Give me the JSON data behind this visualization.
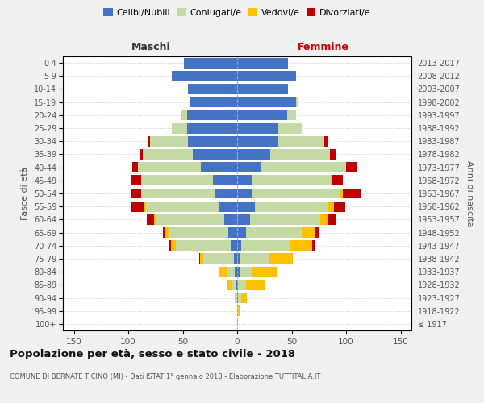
{
  "age_groups": [
    "100+",
    "95-99",
    "90-94",
    "85-89",
    "80-84",
    "75-79",
    "70-74",
    "65-69",
    "60-64",
    "55-59",
    "50-54",
    "45-49",
    "40-44",
    "35-39",
    "30-34",
    "25-29",
    "20-24",
    "15-19",
    "10-14",
    "5-9",
    "0-4"
  ],
  "birth_years": [
    "≤ 1917",
    "1918-1922",
    "1923-1927",
    "1928-1932",
    "1933-1937",
    "1938-1942",
    "1943-1947",
    "1948-1952",
    "1953-1957",
    "1958-1962",
    "1963-1967",
    "1968-1972",
    "1973-1977",
    "1978-1982",
    "1983-1987",
    "1988-1992",
    "1993-1997",
    "1998-2002",
    "2003-2007",
    "2008-2012",
    "2013-2017"
  ],
  "colors": {
    "celibi": "#4472c4",
    "coniugati": "#c5d9a5",
    "vedovi": "#ffc000",
    "divorziati": "#c00000"
  },
  "maschi": {
    "celibi": [
      0,
      0,
      0,
      1,
      2,
      3,
      6,
      8,
      12,
      16,
      20,
      22,
      33,
      41,
      45,
      46,
      46,
      43,
      45,
      60,
      49
    ],
    "coniugati": [
      0,
      0,
      2,
      4,
      8,
      28,
      50,
      55,
      62,
      68,
      68,
      66,
      58,
      46,
      35,
      14,
      5,
      1,
      0,
      0,
      0
    ],
    "vedovi": [
      0,
      0,
      0,
      4,
      6,
      3,
      5,
      3,
      2,
      1,
      0,
      0,
      0,
      0,
      0,
      0,
      0,
      0,
      0,
      0,
      0
    ],
    "divorziati": [
      0,
      0,
      0,
      0,
      0,
      1,
      1,
      2,
      7,
      13,
      10,
      9,
      5,
      3,
      2,
      0,
      0,
      0,
      0,
      0,
      0
    ]
  },
  "femmine": {
    "nubili": [
      0,
      0,
      1,
      1,
      2,
      3,
      4,
      8,
      12,
      16,
      14,
      14,
      22,
      30,
      38,
      38,
      46,
      54,
      47,
      54,
      47
    ],
    "coniugate": [
      0,
      1,
      3,
      7,
      12,
      26,
      45,
      52,
      64,
      68,
      80,
      72,
      78,
      55,
      42,
      22,
      8,
      2,
      0,
      0,
      0
    ],
    "vedove": [
      0,
      1,
      5,
      18,
      22,
      22,
      20,
      12,
      8,
      5,
      3,
      1,
      0,
      0,
      0,
      0,
      0,
      0,
      0,
      0,
      0
    ],
    "divorziate": [
      0,
      0,
      0,
      0,
      0,
      0,
      2,
      3,
      7,
      10,
      16,
      10,
      10,
      5,
      3,
      0,
      0,
      0,
      0,
      0,
      0
    ]
  },
  "xlim": 160,
  "xlabel_left": "Maschi",
  "xlabel_right": "Femmine",
  "title": "Popolazione per età, sesso e stato civile - 2018",
  "subtitle": "COMUNE DI BERNATE TICINO (MI) - Dati ISTAT 1° gennaio 2018 - Elaborazione TUTTITALIA.IT",
  "ylabel": "Fasce di età",
  "ylabel_right": "Anni di nascita",
  "legend_labels": [
    "Celibi/Nubili",
    "Coniugati/e",
    "Vedovi/e",
    "Divorziati/e"
  ],
  "bg_color": "#f0f0f0",
  "plot_bg_color": "#ffffff"
}
